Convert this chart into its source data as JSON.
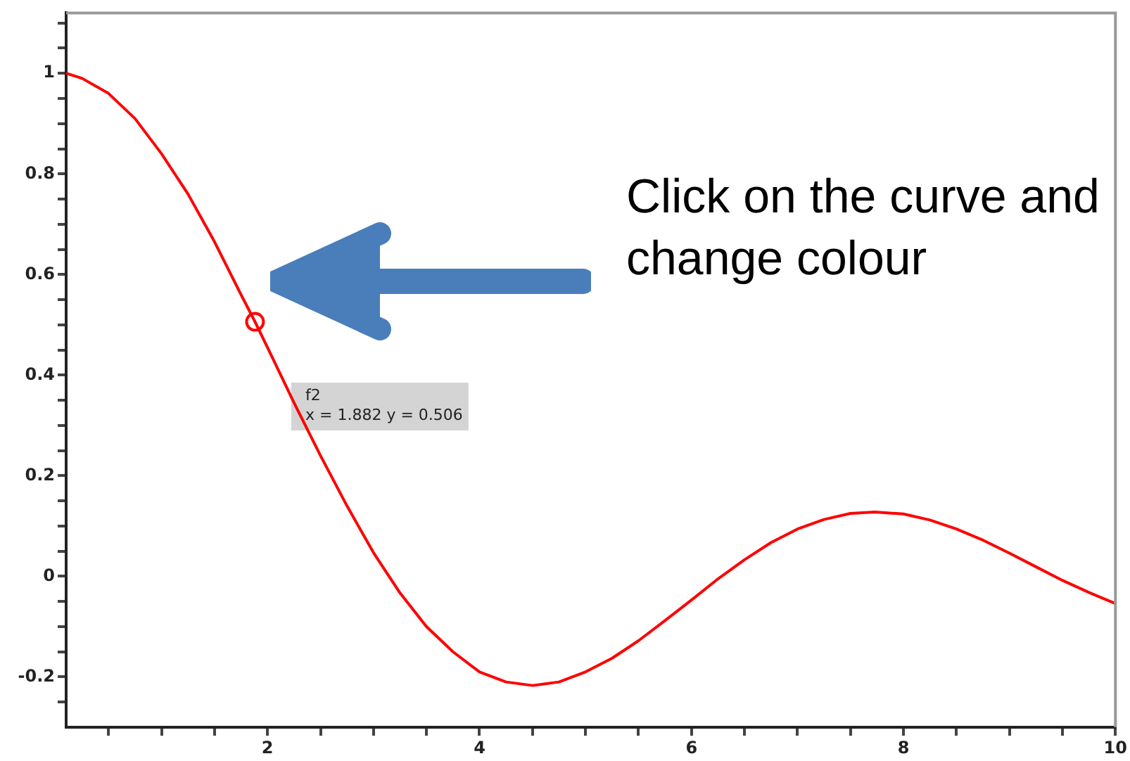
{
  "chart_data": {
    "type": "line",
    "series": [
      {
        "color": "#ff0000",
        "marker": "none",
        "x": [
          0.1,
          0.25,
          0.5,
          0.75,
          1,
          1.25,
          1.5,
          1.75,
          1.882,
          2,
          2.25,
          2.5,
          2.75,
          3,
          3.25,
          3.5,
          3.75,
          4,
          4.25,
          4.5,
          4.75,
          5,
          5.25,
          5.5,
          5.75,
          6,
          6.25,
          6.5,
          6.75,
          7,
          7.25,
          7.5,
          7.73,
          8,
          8.25,
          8.5,
          8.75,
          9,
          9.25,
          9.5,
          9.75,
          10
        ],
        "values": [
          1.0,
          0.99,
          0.96,
          0.91,
          0.84,
          0.76,
          0.665,
          0.56,
          0.506,
          0.455,
          0.345,
          0.24,
          0.14,
          0.047,
          -0.033,
          -0.1,
          -0.15,
          -0.19,
          -0.21,
          -0.217,
          -0.21,
          -0.19,
          -0.163,
          -0.128,
          -0.088,
          -0.047,
          -0.005,
          0.033,
          0.067,
          0.094,
          0.113,
          0.125,
          0.128,
          0.124,
          0.112,
          0.094,
          0.072,
          0.046,
          0.019,
          -0.008,
          -0.032,
          -0.054
        ]
      },
      {
        "type": "scatter",
        "color": "#ff0000",
        "x": [
          1.882
        ],
        "values": [
          0.506
        ]
      }
    ],
    "xlim": [
      0.1,
      10
    ],
    "xticks": [
      {
        "value": 0.5,
        "label": null
      },
      {
        "value": 1,
        "label": null
      },
      {
        "value": 1.5,
        "label": null
      },
      2,
      {
        "value": 2.5,
        "label": null
      },
      {
        "value": 3,
        "label": null
      },
      {
        "value": 3.5,
        "label": null
      },
      4,
      {
        "value": 4.5,
        "label": null
      },
      {
        "value": 5,
        "label": null
      },
      {
        "value": 5.5,
        "label": null
      },
      6,
      {
        "value": 6.5,
        "label": null
      },
      {
        "value": 7,
        "label": null
      },
      {
        "value": 7.5,
        "label": null
      },
      8,
      {
        "value": 8.5,
        "label": null
      },
      {
        "value": 9,
        "label": null
      },
      {
        "value": 9.5,
        "label": null
      },
      10
    ],
    "ylim": [
      -0.3,
      1.12
    ],
    "yticks": [
      {
        "value": -0.25,
        "label": null
      },
      -0.2,
      {
        "value": -0.15,
        "label": null
      },
      {
        "value": -0.1,
        "label": null
      },
      {
        "value": -0.05,
        "label": null
      },
      0,
      {
        "value": 0.05,
        "label": null
      },
      {
        "value": 0.1,
        "label": null
      },
      {
        "value": 0.15,
        "label": null
      },
      0.2,
      {
        "value": 0.25,
        "label": null
      },
      {
        "value": 0.3,
        "label": null
      },
      {
        "value": 0.35,
        "label": null
      },
      0.4,
      {
        "value": 0.45,
        "label": null
      },
      {
        "value": 0.5,
        "label": null
      },
      {
        "value": 0.55,
        "label": null
      },
      0.6,
      {
        "value": 0.65,
        "label": null
      },
      {
        "value": 0.7,
        "label": null
      },
      {
        "value": 0.75,
        "label": null
      },
      0.8,
      {
        "value": 0.85,
        "label": null
      },
      {
        "value": 0.9,
        "label": null
      },
      {
        "value": 0.95,
        "label": null
      },
      1,
      {
        "value": 1.05,
        "label": null
      },
      {
        "value": 1.1,
        "label": null
      }
    ],
    "grid": false,
    "legend": false,
    "annotations": [
      "f2\nx = 1.882 y = 0.506",
      "Click on the curve and change colour"
    ]
  }
}
